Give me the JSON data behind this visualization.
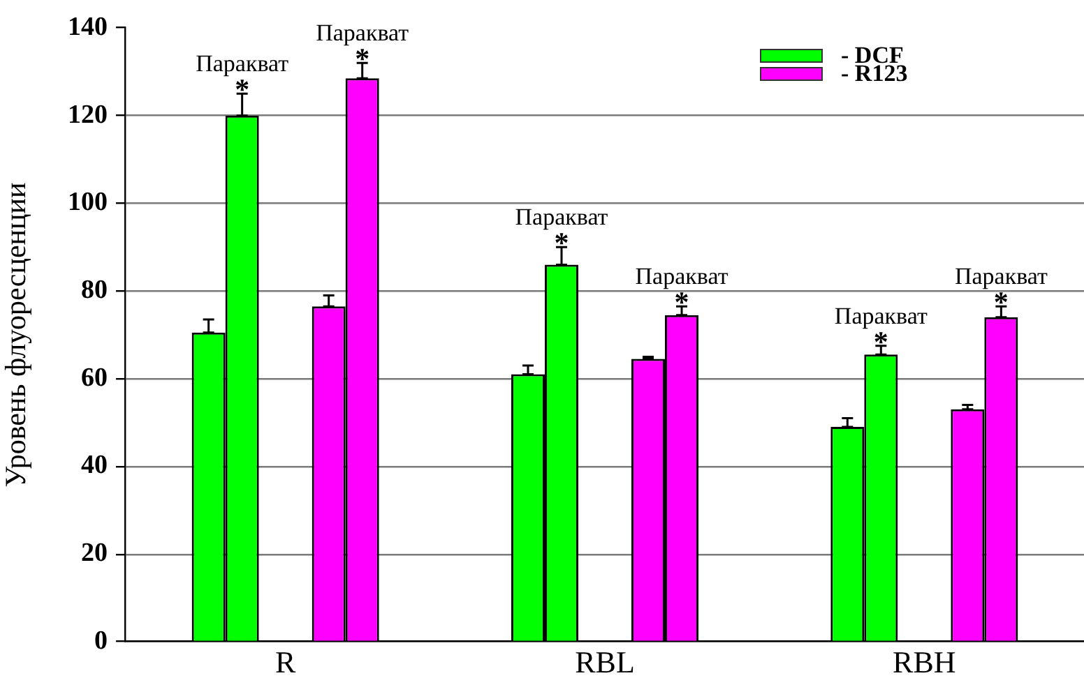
{
  "chart_data": {
    "type": "bar",
    "ylabel": "Уровень флуоресценции",
    "categories": [
      "R",
      "RBL",
      "RBH"
    ],
    "series": [
      {
        "name": "- DCF",
        "color": "#00ff00",
        "values": [
          70.5,
          61,
          49
        ],
        "errors": [
          [
            70.5,
            73.5
          ],
          [
            61,
            63
          ],
          [
            49,
            51
          ]
        ]
      },
      {
        "name": "Паракват",
        "color": "#00ff00",
        "values": [
          120,
          86,
          65.5
        ],
        "errors": [
          [
            120,
            125
          ],
          [
            86,
            90
          ],
          [
            65.5,
            67.5
          ]
        ],
        "value_labels": [
          "*",
          "*",
          "*"
        ]
      },
      {
        "name": "- R123",
        "color": "#ff00ff",
        "values": [
          76.5,
          64.5,
          53
        ],
        "errors": [
          [
            76.5,
            79
          ],
          [
            64.5,
            65
          ],
          [
            53,
            54
          ]
        ]
      },
      {
        "name": "Паракват",
        "color": "#ff00ff",
        "values": [
          128.5,
          74.5,
          74
        ],
        "errors": [
          [
            128.5,
            132
          ],
          [
            74.5,
            76.5
          ],
          [
            74,
            76.5
          ]
        ],
        "value_labels": [
          "*",
          "*",
          "*"
        ]
      }
    ],
    "ylim": [
      0,
      140
    ],
    "yticks": [
      0,
      20,
      40,
      60,
      80,
      100,
      120,
      140
    ],
    "grid": "y",
    "legend": "top right"
  }
}
